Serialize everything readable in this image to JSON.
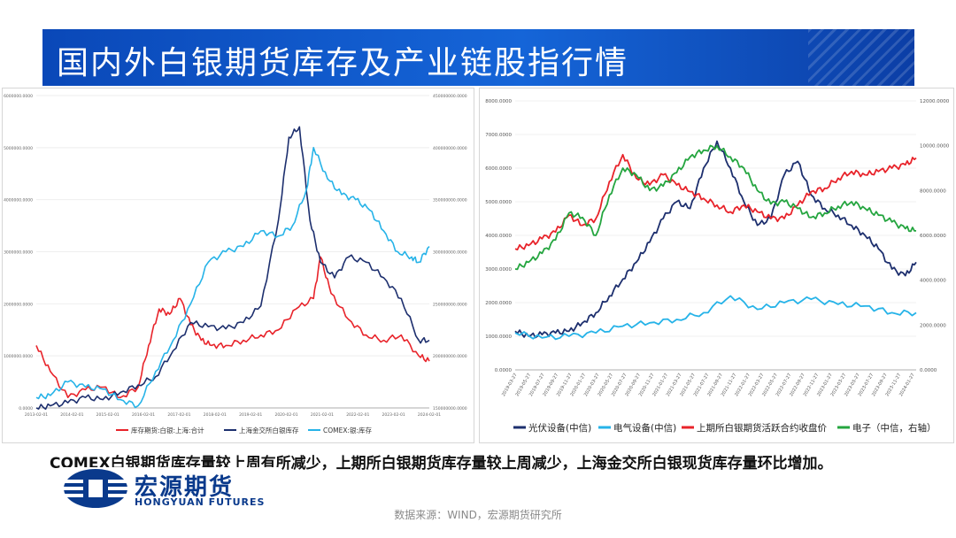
{
  "header": {
    "title": "国内外白银期货库存及产业链股指行情"
  },
  "note": "COMEX白银期货库存量较上周有所减少，上期所白银期货库存量较上周减少，上海金交所白银现货库存量环比增加。",
  "logo": {
    "name": "宏源期货",
    "english": "HONGYUAN FUTURES"
  },
  "source": "数据来源：WIND，宏源期货研究所",
  "colors": {
    "red": "#e8232a",
    "navy": "#1d2f6e",
    "cyan": "#26b3e8",
    "blue": "#1f6fd1",
    "green": "#24a53f"
  },
  "chart_data": [
    {
      "type": "line",
      "x_tick_labels": [
        "2013-02-01",
        "2014-02-01",
        "2015-02-01",
        "2016-02-01",
        "2017-02-01",
        "2018-02-01",
        "2019-02-01",
        "2020-02-01",
        "2021-02-01",
        "2022-02-01",
        "2023-02-01",
        "2024-02-01"
      ],
      "left_axis": {
        "ylim": [
          0,
          6000000
        ],
        "tick_labels": [
          "0.0000",
          "1000000.0000",
          "2000000.0000",
          "3000000.0000",
          "4000000.0000",
          "5000000.0000",
          "6000000.0000"
        ]
      },
      "right_axis": {
        "ylim": [
          150000000,
          450000000
        ],
        "tick_labels": [
          "150000000.0000",
          "200000000.0000",
          "250000000.0000",
          "300000000.0000",
          "350000000.0000",
          "400000000.0000",
          "450000000.0000"
        ]
      },
      "series": [
        {
          "name": "库存期货:白银:上海:合计",
          "color": "#e8232a",
          "axis": "left",
          "x": [
            2013.1,
            2013.5,
            2014.0,
            2014.5,
            2015.0,
            2015.5,
            2016.0,
            2016.3,
            2016.6,
            2016.9,
            2017.2,
            2017.5,
            2017.8,
            2018.1,
            2018.5,
            2019.0,
            2019.5,
            2020.0,
            2020.5,
            2021.0,
            2021.2,
            2021.5,
            2022.0,
            2022.5,
            2023.0,
            2023.5,
            2024.0,
            2024.3
          ],
          "values": [
            1200000,
            700000,
            200000,
            350000,
            400000,
            200000,
            400000,
            1200000,
            1900000,
            1800000,
            2100000,
            1600000,
            1300000,
            1200000,
            1200000,
            1300000,
            1400000,
            1500000,
            1900000,
            2100000,
            2900000,
            2200000,
            1700000,
            1400000,
            1300000,
            1400000,
            1000000,
            900000
          ]
        },
        {
          "name": "上海金交所白银库存",
          "color": "#1d2f6e",
          "axis": "right",
          "x": [
            2013.1,
            2013.5,
            2014.0,
            2014.5,
            2015.0,
            2015.5,
            2016.0,
            2016.5,
            2017.0,
            2017.5,
            2018.0,
            2018.5,
            2019.0,
            2019.5,
            2020.0,
            2020.3,
            2020.6,
            2020.9,
            2021.2,
            2021.6,
            2022.0,
            2022.5,
            2023.0,
            2023.5,
            2024.0,
            2024.3
          ],
          "values": [
            150000000,
            152000000,
            155000000,
            160000000,
            158000000,
            165000000,
            172000000,
            180000000,
            205000000,
            232000000,
            228000000,
            226000000,
            232000000,
            248000000,
            330000000,
            410000000,
            420000000,
            330000000,
            290000000,
            275000000,
            295000000,
            290000000,
            275000000,
            255000000,
            215000000,
            215000000
          ]
        },
        {
          "name": "COMEX:银:库存",
          "color": "#26b3e8",
          "axis": "right",
          "x": [
            2013.1,
            2013.5,
            2014.0,
            2014.5,
            2015.0,
            2015.5,
            2016.0,
            2016.5,
            2017.0,
            2017.5,
            2018.0,
            2018.5,
            2019.0,
            2019.5,
            2020.0,
            2020.4,
            2020.8,
            2021.0,
            2021.4,
            2021.8,
            2022.2,
            2022.6,
            2023.0,
            2023.4,
            2023.8,
            2024.0,
            2024.3
          ],
          "values": [
            160000000,
            162000000,
            175000000,
            170000000,
            168000000,
            158000000,
            152000000,
            185000000,
            215000000,
            250000000,
            290000000,
            300000000,
            305000000,
            320000000,
            315000000,
            325000000,
            360000000,
            400000000,
            370000000,
            355000000,
            350000000,
            340000000,
            320000000,
            300000000,
            295000000,
            290000000,
            305000000
          ]
        }
      ]
    },
    {
      "type": "line",
      "x_tick_labels": [
        "2019-03-27",
        "2019-05-27",
        "2019-07-27",
        "2019-09-27",
        "2019-11-27",
        "2020-01-27",
        "2020-03-27",
        "2020-05-27",
        "2020-07-27",
        "2020-09-27",
        "2020-11-27",
        "2021-01-27",
        "2021-03-27",
        "2021-05-27",
        "2021-07-27",
        "2021-09-27",
        "2021-11-27",
        "2022-01-27",
        "2022-03-27",
        "2022-05-27",
        "2022-07-27",
        "2022-09-27",
        "2022-11-27",
        "2023-01-27",
        "2023-03-27",
        "2023-05-27",
        "2023-07-27",
        "2023-09-27",
        "2023-11-27",
        "2024-01-27"
      ],
      "left_axis": {
        "ylim": [
          0,
          8000
        ],
        "tick_labels": [
          "0.0000",
          "1000.0000",
          "2000.0000",
          "3000.0000",
          "4000.0000",
          "5000.0000",
          "6000.0000",
          "7000.0000",
          "8000.0000"
        ]
      },
      "right_axis": {
        "ylim": [
          0,
          12000
        ],
        "tick_labels": [
          "0.0000",
          "2000.0000",
          "4000.0000",
          "6000.0000",
          "8000.0000",
          "10000.0000",
          "12000.0000"
        ]
      },
      "series": [
        {
          "name": "光伏设备(中信)",
          "color": "#1d2f6e",
          "axis": "left",
          "x": [
            0,
            1,
            2,
            3,
            4,
            5,
            6,
            7,
            8,
            9,
            10,
            11,
            12,
            13,
            14,
            15,
            16,
            17,
            18,
            19,
            20,
            21,
            22,
            23,
            24,
            25,
            26,
            27,
            28,
            29,
            29.8
          ],
          "values": [
            1150,
            1000,
            1050,
            1100,
            1150,
            1400,
            1700,
            2200,
            2700,
            3200,
            3800,
            4500,
            5000,
            4800,
            6000,
            6800,
            6000,
            5000,
            4300,
            4500,
            5800,
            6200,
            5200,
            4800,
            4600,
            4300,
            4000,
            3600,
            3000,
            2800,
            3200
          ]
        },
        {
          "name": "电气设备(中信)",
          "color": "#26b3e8",
          "axis": "left",
          "x": [
            0,
            2,
            4,
            6,
            8,
            10,
            12,
            14,
            16,
            18,
            20,
            22,
            24,
            26,
            28,
            29.8
          ],
          "values": [
            1100,
            950,
            1000,
            1100,
            1300,
            1400,
            1500,
            1700,
            2200,
            1800,
            2000,
            2100,
            1950,
            1900,
            1700,
            1700
          ]
        },
        {
          "name": "上期所白银期货活跃合约收盘价",
          "color": "#e8232a",
          "axis": "left",
          "x": [
            0,
            1,
            2,
            3,
            4,
            5,
            6,
            7,
            8,
            9,
            10,
            11,
            12,
            13,
            14,
            15,
            16,
            17,
            18,
            19,
            20,
            21,
            22,
            23,
            24,
            25,
            26,
            27,
            28,
            29,
            29.8
          ],
          "values": [
            3600,
            3700,
            3900,
            4100,
            4600,
            4300,
            4500,
            5600,
            6400,
            5700,
            5500,
            5800,
            5500,
            5300,
            5100,
            4900,
            4700,
            4900,
            4700,
            4500,
            4500,
            4900,
            5300,
            5400,
            5700,
            5900,
            5800,
            5900,
            6000,
            6100,
            6300
          ]
        },
        {
          "name": "电子（中信，右轴）",
          "color": "#24a53f",
          "axis": "right",
          "x": [
            0,
            1,
            2,
            3,
            4,
            5,
            6,
            7,
            8,
            9,
            10,
            11,
            12,
            13,
            14,
            15,
            16,
            17,
            18,
            19,
            20,
            21,
            22,
            23,
            24,
            25,
            26,
            27,
            28,
            29,
            29.8
          ],
          "values": [
            4500,
            4800,
            5200,
            5800,
            7000,
            6800,
            6000,
            7800,
            9000,
            8700,
            8000,
            8200,
            8800,
            9500,
            9800,
            10000,
            9500,
            9000,
            8000,
            7400,
            7500,
            7200,
            6800,
            7000,
            7300,
            7500,
            7200,
            6900,
            6600,
            6300,
            6200
          ]
        }
      ]
    }
  ]
}
